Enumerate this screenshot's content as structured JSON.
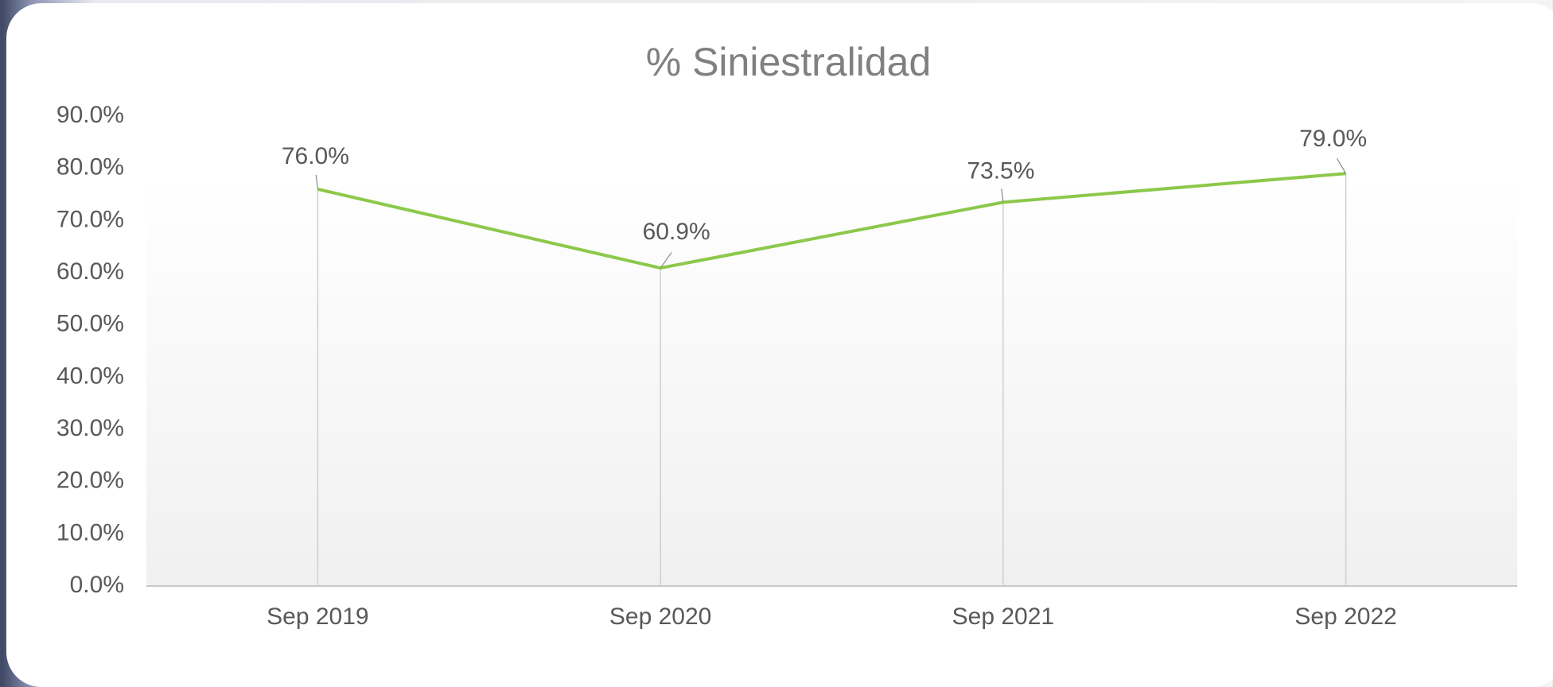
{
  "chart_data": {
    "type": "line",
    "title": "% Siniestralidad",
    "categories": [
      "Sep 2019",
      "Sep 2020",
      "Sep 2021",
      "Sep 2022"
    ],
    "series": [
      {
        "name": "% Siniestralidad",
        "color": "#8cc84b",
        "values": [
          76.0,
          60.9,
          73.5,
          79.0
        ],
        "value_labels": [
          "76.0%",
          "60.9%",
          "73.5%",
          "79.0%"
        ]
      }
    ],
    "ylim": [
      0,
      90
    ],
    "yticks": [
      {
        "value": 0,
        "label": "0.0%"
      },
      {
        "value": 10,
        "label": "10.0%"
      },
      {
        "value": 20,
        "label": "20.0%"
      },
      {
        "value": 30,
        "label": "30.0%"
      },
      {
        "value": 40,
        "label": "40.0%"
      },
      {
        "value": 50,
        "label": "50.0%"
      },
      {
        "value": 60,
        "label": "60.0%"
      },
      {
        "value": 70,
        "label": "70.0%"
      },
      {
        "value": 80,
        "label": "80.0%"
      },
      {
        "value": 90,
        "label": "90.0%"
      }
    ],
    "drop_lines": true
  }
}
